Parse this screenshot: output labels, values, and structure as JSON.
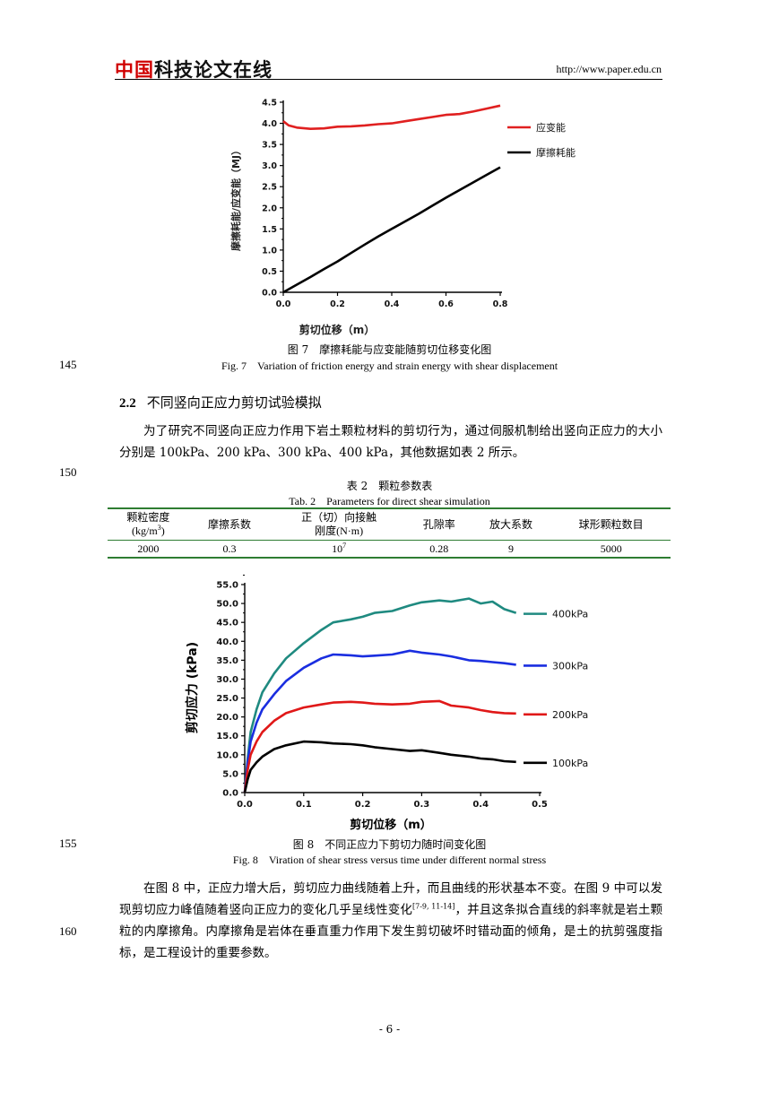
{
  "header": {
    "logo_red": "中国",
    "logo_black": "科技论文在线",
    "url": "http://www.paper.edu.cn"
  },
  "fig7": {
    "caption_cn": "图 7　摩擦耗能与应变能随剪切位移变化图",
    "caption_en": "Fig. 7　Variation of friction energy and strain energy with shear displacement"
  },
  "fig8": {
    "caption_cn": "图 8　不同正应力下剪切力随时间变化图",
    "caption_en": "Fig. 8　Viration of shear stress versus time under different normal stress"
  },
  "line_numbers": {
    "l145": "145",
    "l150": "150",
    "l155": "155",
    "l160": "160"
  },
  "section": {
    "number": "2.2",
    "title": "不同竖向正应力剪切试验模拟",
    "para1": "为了研究不同竖向正应力作用下岩土颗粒材料的剪切行为，通过伺服机制给出竖向正应力的大小分别是 100kPa、200 kPa、300 kPa、400 kPa，其他数据如表 2 所示。",
    "para2_a": "在图 8 中，正应力增大后，剪切应力曲线随着上升，而且曲线的形状基本不变。在图 9 中可以发现剪切应力峰值随着竖向正应力的变化几乎呈线性变化",
    "para2_cite": "[7-9, 11-14]",
    "para2_b": "，并且这条拟合直线的斜率就是岩土颗粒的内摩擦角。内摩擦角是岩体在垂直重力作用下发生剪切破坏时错动面的倾角，是土的抗剪强度指标，是工程设计的重要参数。"
  },
  "table2": {
    "title_cn": "表 2　颗粒参数表",
    "title_en": "Tab. 2　Parameters for direct shear simulation",
    "headers": {
      "density_a": "颗粒密度",
      "density_b": "(kg/m",
      "density_sup": "3",
      "density_c": ")",
      "friction": "摩擦系数",
      "stiffness_a": "正（切）向接触",
      "stiffness_b": "刚度(N·m)",
      "porosity": "孔隙率",
      "scale": "放大系数",
      "count": "球形颗粒数目"
    },
    "row": {
      "density": "2000",
      "friction": "0.3",
      "stiffness_base": "10",
      "stiffness_exp": "7",
      "porosity": "0.28",
      "scale": "9",
      "count": "5000"
    }
  },
  "page_number": "- 6 -",
  "chart_data": [
    {
      "type": "line",
      "title": "",
      "xlabel": "剪切位移（m）",
      "ylabel": "摩擦耗能/应变能（MJ）",
      "xlim": [
        0,
        0.8
      ],
      "ylim": [
        0,
        4.5
      ],
      "x_ticks": [
        "0.0",
        "0.2",
        "0.4",
        "0.6",
        "0.8"
      ],
      "y_ticks": [
        "0.0",
        "0.5",
        "1.0",
        "1.5",
        "2.0",
        "2.5",
        "3.0",
        "3.5",
        "4.0",
        "4.5"
      ],
      "legend_position": "right",
      "grid": false,
      "series": [
        {
          "name": "应变能",
          "color": "#e02020",
          "x": [
            0.0,
            0.02,
            0.05,
            0.1,
            0.15,
            0.2,
            0.25,
            0.3,
            0.35,
            0.4,
            0.45,
            0.5,
            0.55,
            0.6,
            0.65,
            0.7,
            0.75,
            0.8
          ],
          "y": [
            4.05,
            3.95,
            3.9,
            3.87,
            3.88,
            3.92,
            3.93,
            3.95,
            3.98,
            4.0,
            4.05,
            4.1,
            4.15,
            4.2,
            4.22,
            4.28,
            4.35,
            4.42
          ]
        },
        {
          "name": "摩擦耗能",
          "color": "#000000",
          "x": [
            0.0,
            0.05,
            0.1,
            0.15,
            0.2,
            0.25,
            0.3,
            0.35,
            0.4,
            0.45,
            0.5,
            0.55,
            0.6,
            0.65,
            0.7,
            0.75,
            0.8
          ],
          "y": [
            0.0,
            0.18,
            0.36,
            0.55,
            0.73,
            0.93,
            1.13,
            1.32,
            1.5,
            1.68,
            1.86,
            2.05,
            2.24,
            2.42,
            2.6,
            2.78,
            2.96
          ]
        }
      ]
    },
    {
      "type": "line",
      "title": "",
      "xlabel": "剪切位移（m）",
      "ylabel": "剪切应力 (kPa)",
      "xlim": [
        0,
        0.5
      ],
      "ylim": [
        0,
        55
      ],
      "x_ticks": [
        "0.0",
        "0.1",
        "0.2",
        "0.3",
        "0.4",
        "0.5"
      ],
      "y_ticks": [
        "0.0",
        "5.0",
        "10.0",
        "15.0",
        "20.0",
        "25.0",
        "30.0",
        "35.0",
        "40.0",
        "45.0",
        "50.0",
        "55.0"
      ],
      "legend_position": "right",
      "grid": false,
      "series": [
        {
          "name": "400kPa",
          "color": "#1f8a80",
          "x": [
            0.0,
            0.005,
            0.01,
            0.02,
            0.03,
            0.05,
            0.07,
            0.1,
            0.13,
            0.15,
            0.18,
            0.2,
            0.22,
            0.25,
            0.28,
            0.3,
            0.33,
            0.35,
            0.38,
            0.4,
            0.42,
            0.44,
            0.46
          ],
          "y": [
            0.0,
            9.0,
            16.0,
            22.0,
            26.5,
            31.5,
            35.5,
            39.5,
            43.0,
            45.0,
            45.8,
            46.5,
            47.5,
            48.0,
            49.5,
            50.3,
            50.8,
            50.5,
            51.3,
            50.0,
            50.5,
            48.5,
            47.5
          ]
        },
        {
          "name": "300kPa",
          "color": "#1a2ee0",
          "x": [
            0.0,
            0.005,
            0.01,
            0.02,
            0.03,
            0.05,
            0.07,
            0.1,
            0.13,
            0.15,
            0.18,
            0.2,
            0.22,
            0.25,
            0.28,
            0.3,
            0.33,
            0.35,
            0.38,
            0.4,
            0.42,
            0.44,
            0.46
          ],
          "y": [
            0.0,
            8.0,
            13.5,
            18.5,
            22.0,
            26.0,
            29.5,
            33.0,
            35.5,
            36.5,
            36.3,
            36.0,
            36.2,
            36.5,
            37.5,
            37.0,
            36.5,
            36.0,
            35.0,
            34.8,
            34.5,
            34.2,
            33.8
          ]
        },
        {
          "name": "200kPa",
          "color": "#e01818",
          "x": [
            0.0,
            0.005,
            0.01,
            0.02,
            0.03,
            0.05,
            0.07,
            0.1,
            0.13,
            0.15,
            0.18,
            0.2,
            0.22,
            0.25,
            0.28,
            0.3,
            0.33,
            0.35,
            0.38,
            0.4,
            0.42,
            0.44,
            0.46
          ],
          "y": [
            0.0,
            6.0,
            10.0,
            13.5,
            16.0,
            19.0,
            21.0,
            22.5,
            23.3,
            23.8,
            24.0,
            23.8,
            23.5,
            23.3,
            23.5,
            24.0,
            24.2,
            23.0,
            22.5,
            21.8,
            21.3,
            21.0,
            20.9
          ]
        },
        {
          "name": "100kPa",
          "color": "#000000",
          "x": [
            0.0,
            0.005,
            0.01,
            0.02,
            0.03,
            0.05,
            0.07,
            0.1,
            0.13,
            0.15,
            0.18,
            0.2,
            0.22,
            0.25,
            0.28,
            0.3,
            0.33,
            0.35,
            0.38,
            0.4,
            0.42,
            0.44,
            0.46
          ],
          "y": [
            0.0,
            3.5,
            6.0,
            8.0,
            9.5,
            11.5,
            12.5,
            13.5,
            13.3,
            13.0,
            12.8,
            12.5,
            12.0,
            11.5,
            11.0,
            11.2,
            10.5,
            10.0,
            9.5,
            9.0,
            8.8,
            8.3,
            8.1
          ]
        }
      ]
    }
  ]
}
